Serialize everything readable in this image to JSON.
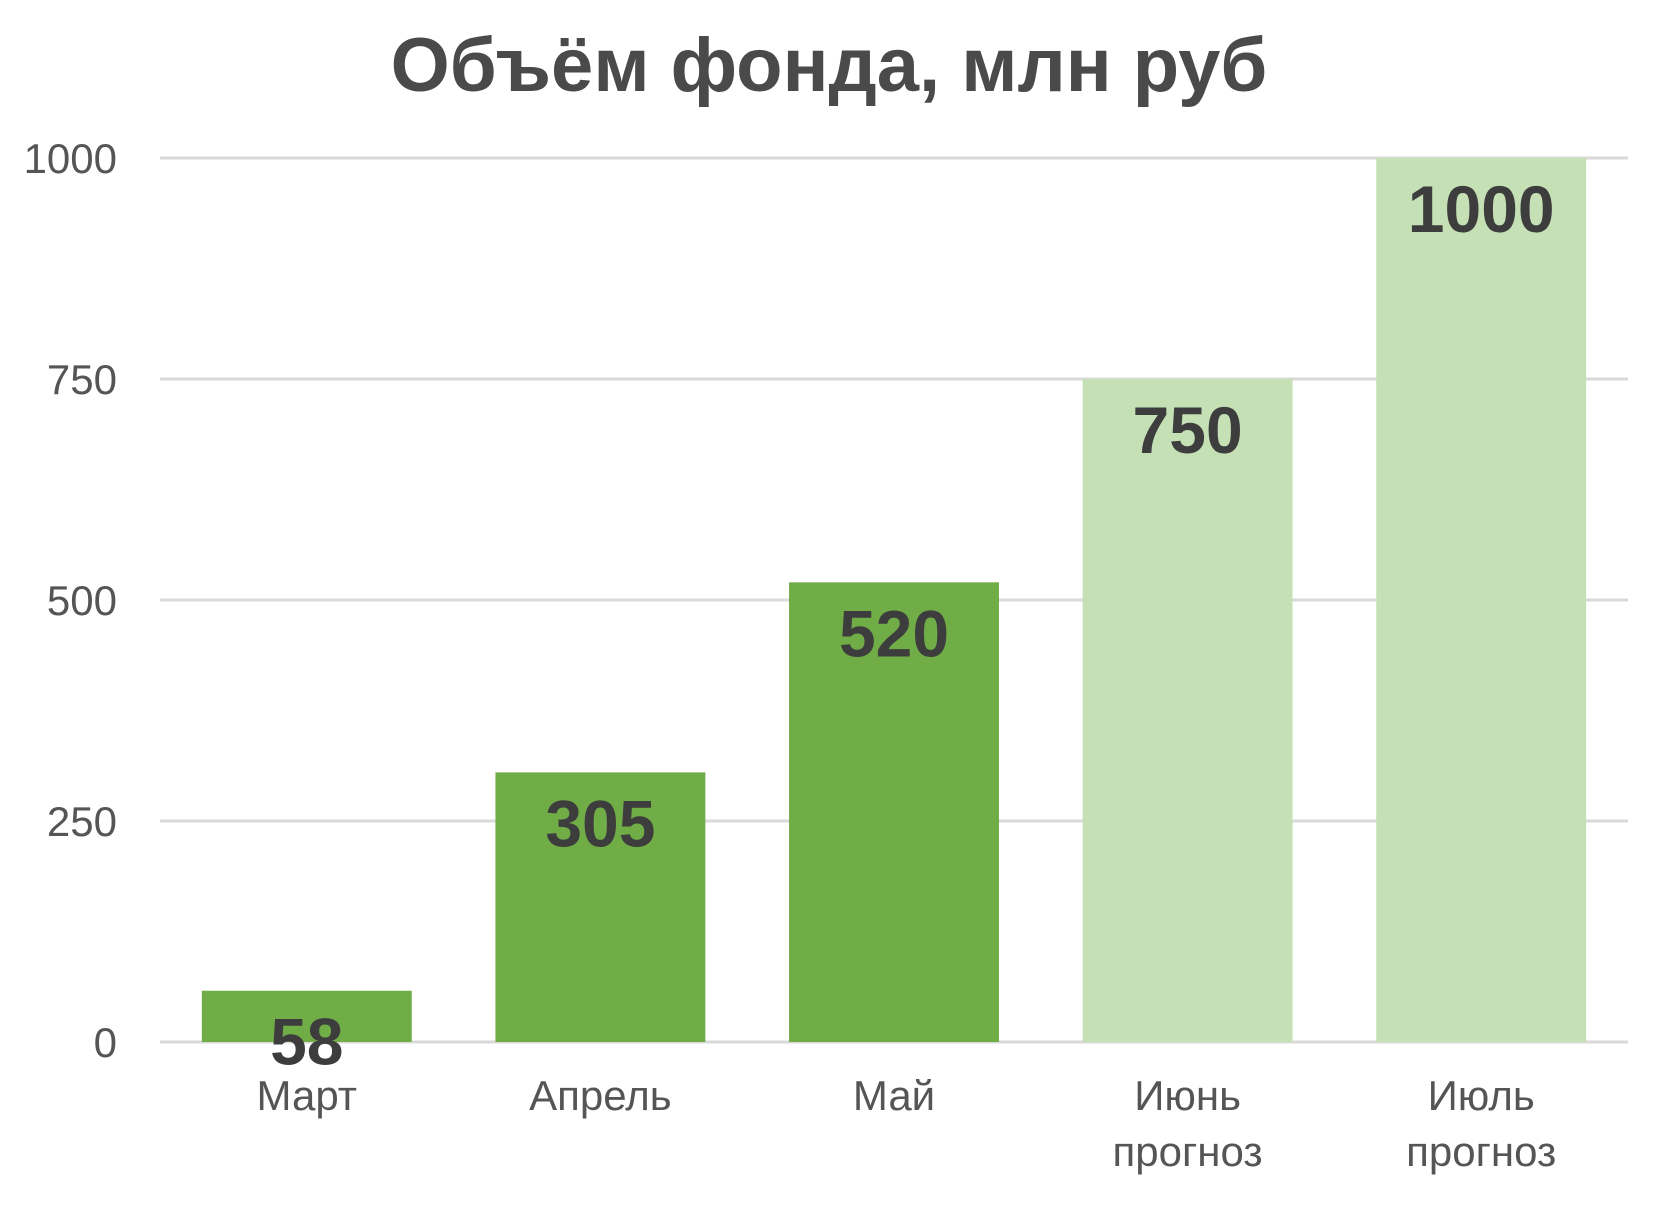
{
  "chart_data": {
    "type": "bar",
    "title": "Объём фонда, млн руб",
    "xlabel": "",
    "ylabel": "",
    "categories": [
      "Март",
      "Апрель",
      "Май",
      "Июнь прогноз",
      "Июль прогноз"
    ],
    "category_lines": [
      [
        "Март"
      ],
      [
        "Апрель"
      ],
      [
        "Май"
      ],
      [
        "Июнь",
        "прогноз"
      ],
      [
        "Июль",
        "прогноз"
      ]
    ],
    "values": [
      58,
      305,
      520,
      750,
      1000
    ],
    "data_labels": [
      "58",
      "305",
      "520",
      "750",
      "1000"
    ],
    "forecast": [
      false,
      false,
      false,
      true,
      true
    ],
    "ylim": [
      0,
      1000
    ],
    "yticks": [
      0,
      250,
      500,
      750,
      1000
    ],
    "ytick_labels": [
      "0",
      "250",
      "500",
      "750",
      "1000"
    ],
    "grid": true,
    "legend": "none",
    "colors": {
      "actual": "#70ad47",
      "forecast": "#c5e0b4",
      "grid": "#d9d9d9",
      "text": "#555555",
      "label": "#3d3d3d"
    }
  }
}
